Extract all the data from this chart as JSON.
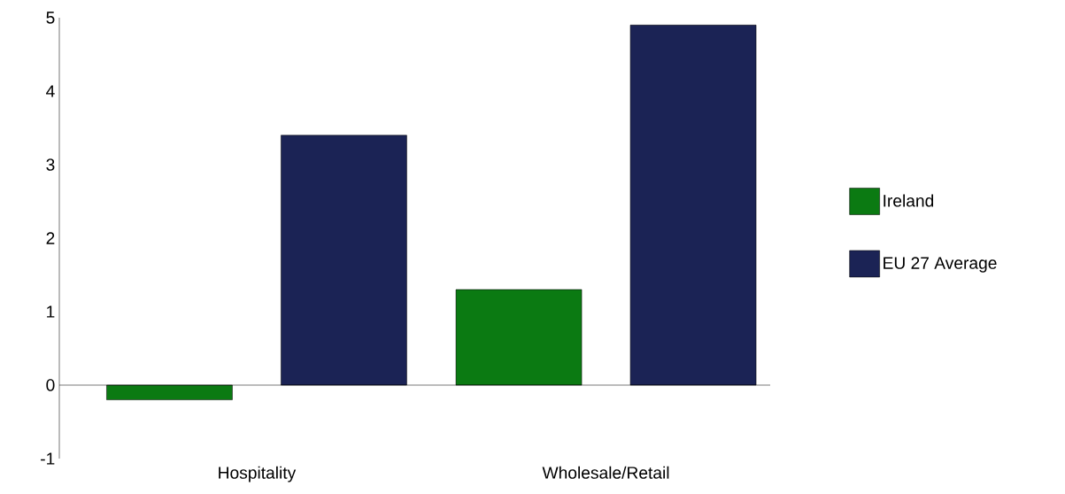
{
  "chart_data": {
    "type": "bar",
    "categories": [
      "Hospitality",
      "Wholesale/Retail"
    ],
    "series": [
      {
        "name": "Ireland",
        "color": "#0b7a12",
        "values": [
          -0.2,
          1.3
        ]
      },
      {
        "name": "EU 27 Average",
        "color": "#1b2355",
        "values": [
          3.4,
          4.9
        ]
      }
    ],
    "ylim": [
      -1,
      5
    ],
    "yticks": [
      -1,
      0,
      1,
      2,
      3,
      4,
      5
    ],
    "legend": "right"
  }
}
